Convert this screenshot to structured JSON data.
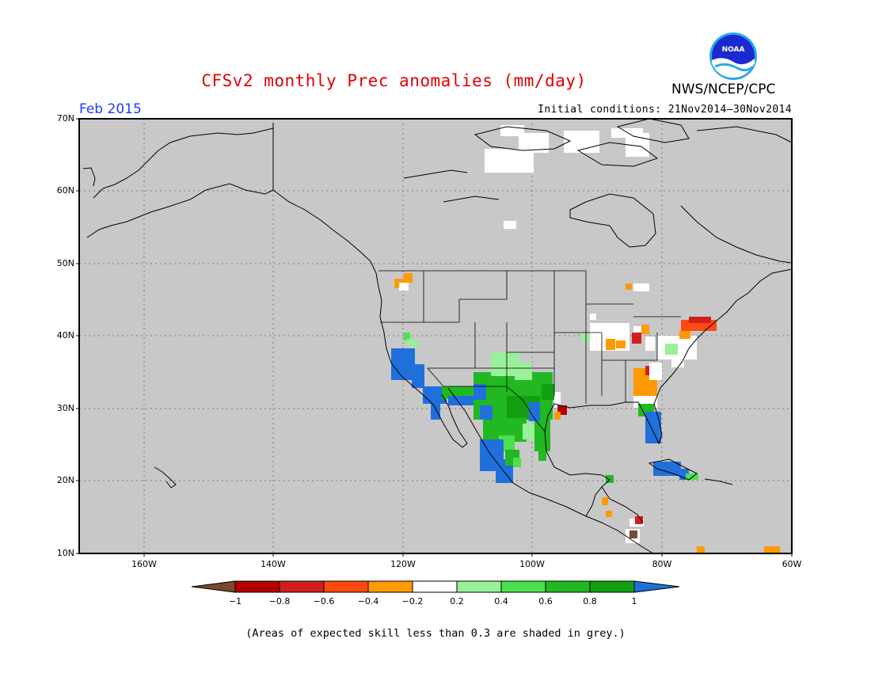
{
  "header": {
    "title": "CFSv2 monthly Prec anomalies (mm/day)",
    "agency": "NWS/NCEP/CPC",
    "month": "Feb 2015",
    "initial_conditions": "Initial conditions: 21Nov2014–30Nov2014",
    "logo_text": "NOAA"
  },
  "map": {
    "projection": "lat-lon",
    "lon_range": [
      -170,
      -60
    ],
    "lat_range": [
      10,
      70
    ],
    "lat_labels": [
      "70N",
      "60N",
      "50N",
      "40N",
      "30N",
      "20N",
      "10N"
    ],
    "lon_labels": [
      "160W",
      "140W",
      "120W",
      "100W",
      "80W",
      "60W"
    ],
    "grid": true,
    "background_color": "#c8c8c8"
  },
  "colorbar": {
    "ticks": [
      "−1",
      "−0.8",
      "−0.6",
      "−0.4",
      "−0.2",
      "0.2",
      "0.4",
      "0.6",
      "0.8",
      "1"
    ],
    "colors": [
      "#7a4a2c",
      "#b40000",
      "#d41e1e",
      "#ff4a10",
      "#ff9a00",
      "#ffffff",
      "#98f098",
      "#4ce04c",
      "#22b822",
      "#12a012",
      "#2070dc"
    ]
  },
  "footnote": "(Areas of expected skill less than 0.3 are shaded in grey.)"
}
